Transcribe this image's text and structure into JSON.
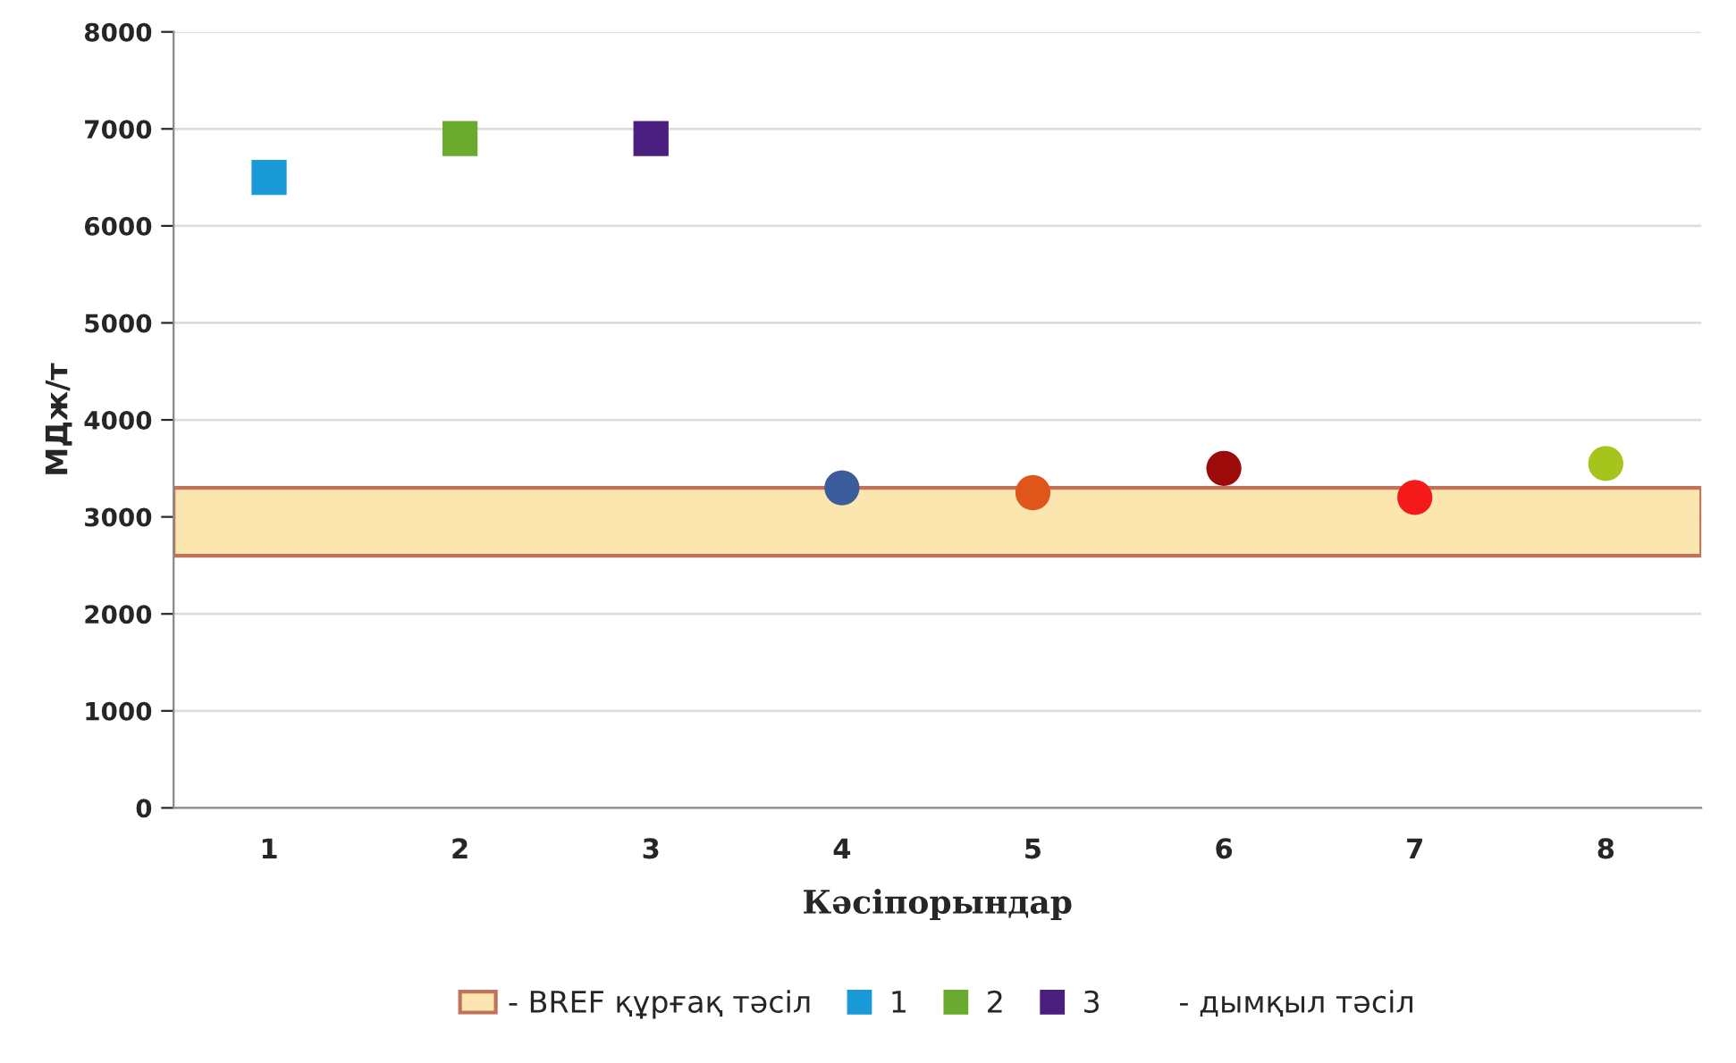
{
  "chart_data": {
    "type": "scatter",
    "xlabel": "Кәсіпорындар",
    "ylabel": "МДж/т",
    "categories": [
      "1",
      "2",
      "3",
      "4",
      "5",
      "6",
      "7",
      "8"
    ],
    "series": [
      {
        "name": "1",
        "color": "#1a9ad6",
        "marker": "square",
        "values": [
          6500,
          null,
          null,
          null,
          null,
          null,
          null,
          null
        ]
      },
      {
        "name": "2",
        "color": "#6aaa2e",
        "marker": "square",
        "values": [
          null,
          6900,
          null,
          null,
          null,
          null,
          null,
          null
        ]
      },
      {
        "name": "3",
        "color": "#4b1f7f",
        "marker": "square",
        "values": [
          null,
          null,
          6900,
          null,
          null,
          null,
          null,
          null
        ]
      },
      {
        "marker": "circle",
        "colors": [
          "#000000",
          "#000000",
          "#000000",
          "#3b5c9a",
          "#e0561a",
          "#9c0a0a",
          "#f41a1a",
          "#a6c51c"
        ],
        "values": [
          null,
          null,
          null,
          3300,
          3250,
          3500,
          3200,
          3550
        ]
      }
    ],
    "bands": [
      {
        "axis": "y",
        "from": 2600,
        "to": 3300,
        "label": "- BREF құрғақ тәсіл",
        "color": "#fce6b0"
      }
    ],
    "annotations": [
      "- дымқыл тәсіл"
    ],
    "ylim": [
      0,
      8000
    ],
    "yticks": [
      0,
      1000,
      2000,
      3000,
      4000,
      5000,
      6000,
      7000,
      8000
    ],
    "grid": "y",
    "legend": "bottom"
  }
}
